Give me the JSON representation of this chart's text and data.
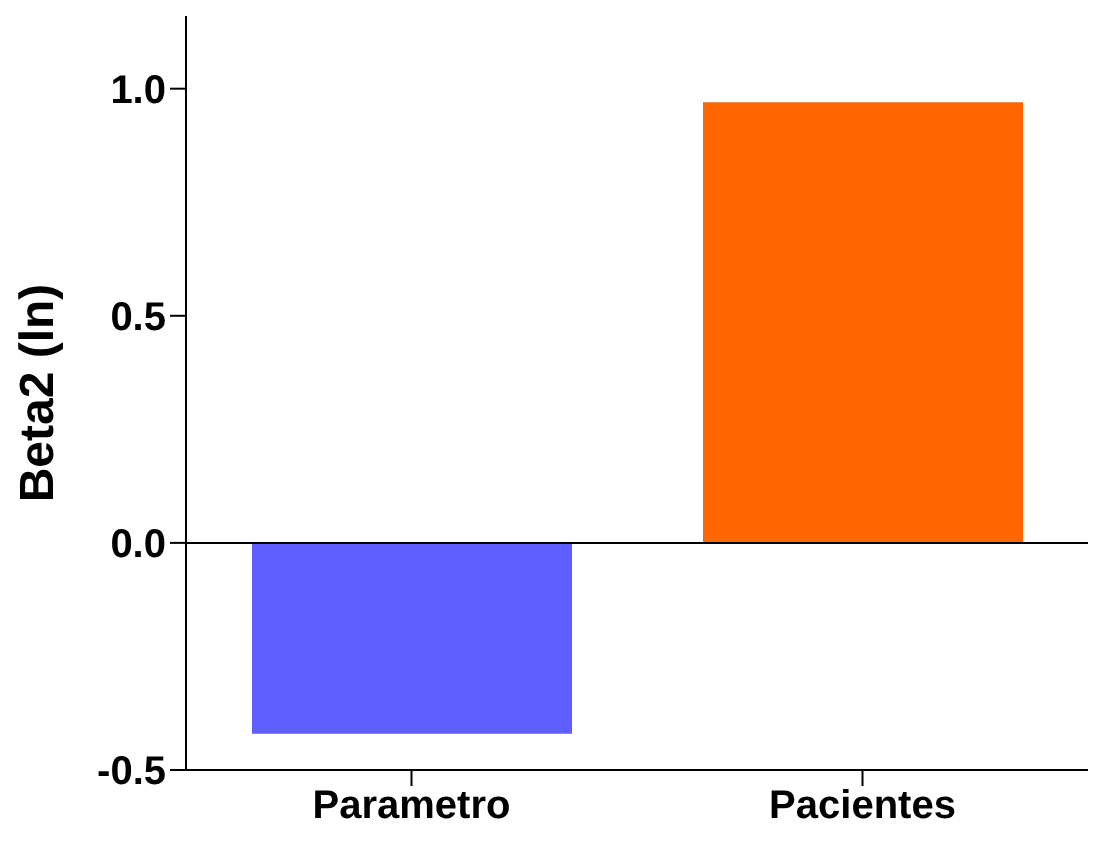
{
  "chart_data": {
    "type": "bar",
    "ylabel": "Beta2 (ln)",
    "categories": [
      "Parametro",
      "Pacientes"
    ],
    "values": [
      -0.42,
      0.97
    ],
    "colors": [
      "#5f5fff",
      "#ff6600"
    ],
    "ylim": [
      -0.5,
      1.16
    ],
    "yticks": [
      {
        "value": -0.5,
        "label": "-0.5"
      },
      {
        "value": 0,
        "label": "0.0"
      },
      {
        "value": 0.5,
        "label": "0.5"
      },
      {
        "value": 1,
        "label": "1.0"
      }
    ],
    "ref_lines": [
      {
        "axis": "y",
        "value": 0
      }
    ],
    "grid": false,
    "legend": false
  }
}
